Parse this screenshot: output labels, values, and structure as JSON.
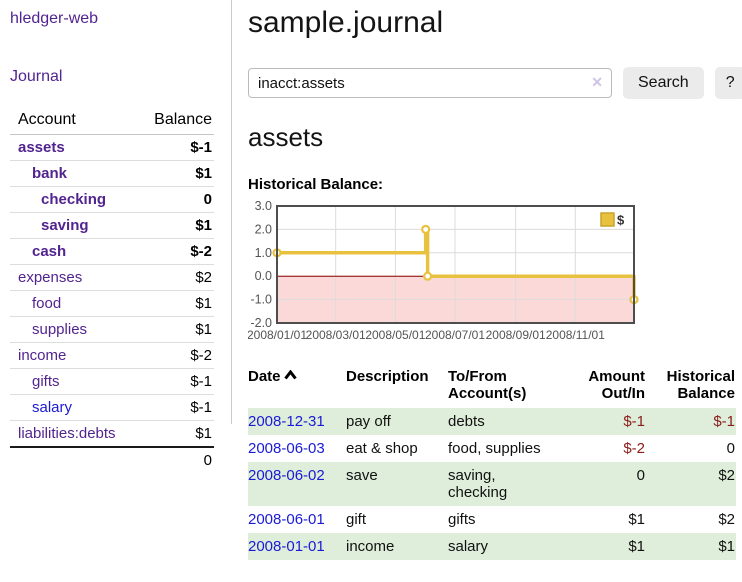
{
  "sidebar": {
    "brand": "hledger-web",
    "journal_link": "Journal",
    "accounts_table": {
      "headers": {
        "account": "Account",
        "balance": "Balance"
      },
      "rows": [
        {
          "name": "assets",
          "indent": 0,
          "bold": true,
          "balance": "$-1",
          "balance_style": "neg-strong"
        },
        {
          "name": "bank",
          "indent": 1,
          "bold": true,
          "balance": "$1",
          "balance_style": "pos"
        },
        {
          "name": "checking",
          "indent": 2,
          "bold": true,
          "balance": "0",
          "balance_style": "pos"
        },
        {
          "name": "saving",
          "indent": 2,
          "bold": true,
          "balance": "$1",
          "balance_style": "pos"
        },
        {
          "name": "cash",
          "indent": 1,
          "bold": true,
          "balance": "$-2",
          "balance_style": "neg-strong"
        },
        {
          "name": "expenses",
          "indent": 0,
          "bold": false,
          "balance": "$2",
          "balance_style": "pos"
        },
        {
          "name": "food",
          "indent": 1,
          "bold": false,
          "balance": "$1",
          "balance_style": "pos"
        },
        {
          "name": "supplies",
          "indent": 1,
          "bold": false,
          "balance": "$1",
          "balance_style": "pos"
        },
        {
          "name": "income",
          "indent": 0,
          "bold": false,
          "balance": "$-2",
          "balance_style": "neg-soft"
        },
        {
          "name": "gifts",
          "indent": 1,
          "bold": false,
          "balance": "$-1",
          "balance_style": "neg-soft"
        },
        {
          "name": "salary",
          "indent": 1,
          "bold": false,
          "link_color": "blue",
          "balance": "$-1",
          "balance_style": "neg-soft"
        },
        {
          "name": "liabilities:debts",
          "indent": 0,
          "bold": false,
          "balance": "$1",
          "balance_style": "pos"
        }
      ],
      "total": "0"
    }
  },
  "header": {
    "title": "sample.journal"
  },
  "search": {
    "value": "inacct:assets",
    "clear_icon": "✕",
    "button_label": "Search",
    "help_label": "?"
  },
  "account_page": {
    "heading": "assets",
    "chart_label": "Historical Balance:"
  },
  "chart_data": {
    "type": "line",
    "step": true,
    "title": "Historical Balance",
    "series": [
      {
        "name": "$",
        "color": "#e8c23f",
        "points": [
          {
            "date": "2008-01-01",
            "day": 0,
            "value": 1
          },
          {
            "date": "2008-06-01",
            "day": 152,
            "value": 2
          },
          {
            "date": "2008-06-03",
            "day": 154,
            "value": 0
          },
          {
            "date": "2008-12-31",
            "day": 365,
            "value": -1
          }
        ]
      }
    ],
    "x_domain_days": [
      0,
      365
    ],
    "ylim": [
      -2,
      3
    ],
    "y_ticks": [
      {
        "label": "3.0",
        "value": 3
      },
      {
        "label": "2.0",
        "value": 2
      },
      {
        "label": "1.0",
        "value": 1
      },
      {
        "label": "0.0",
        "value": 0
      },
      {
        "label": "-1.0",
        "value": -1
      },
      {
        "label": "-2.0",
        "value": -2
      }
    ],
    "x_ticks": [
      {
        "label": "2008/01/01",
        "day": 0
      },
      {
        "label": "2008/03/01",
        "day": 60
      },
      {
        "label": "2008/05/01",
        "day": 121
      },
      {
        "label": "2008/07/01",
        "day": 182
      },
      {
        "label": "2008/09/01",
        "day": 244
      },
      {
        "label": "2008/11/01",
        "day": 305
      }
    ],
    "negative_fill": "#fbd9d9",
    "zero_line_color": "#8b0000",
    "grid_color": "#dcdcdc",
    "border_color": "#4d4d4d",
    "tick_color": "#545454",
    "legend": {
      "label": "$",
      "position": "top-right",
      "swatch_border": "#c9a42c"
    }
  },
  "register_table": {
    "headers": {
      "date": "Date",
      "description": "Description",
      "account": "To/From Account(s)",
      "amount": "Amount Out/In",
      "balance": "Historical Balance"
    },
    "rows": [
      {
        "date": "2008-12-31",
        "description": "pay off",
        "account_lines": [
          "debts"
        ],
        "amount": "$-1",
        "amount_neg": true,
        "balance": "$-1",
        "balance_neg": true,
        "shaded": true
      },
      {
        "date": "2008-06-03",
        "description": "eat & shop",
        "account_lines": [
          "food, supplies"
        ],
        "amount": "$-2",
        "amount_neg": true,
        "balance": "0",
        "balance_neg": false,
        "shaded": false
      },
      {
        "date": "2008-06-02",
        "description": "save",
        "account_lines": [
          "saving,",
          "checking"
        ],
        "amount": "0",
        "amount_neg": false,
        "balance": "$2",
        "balance_neg": false,
        "shaded": true
      },
      {
        "date": "2008-06-01",
        "description": "gift",
        "account_lines": [
          "gifts"
        ],
        "amount": "$1",
        "amount_neg": false,
        "balance": "$2",
        "balance_neg": false,
        "shaded": false
      },
      {
        "date": "2008-01-01",
        "description": "income",
        "account_lines": [
          "salary"
        ],
        "amount": "$1",
        "amount_neg": false,
        "balance": "$1",
        "balance_neg": false,
        "shaded": true
      }
    ]
  }
}
